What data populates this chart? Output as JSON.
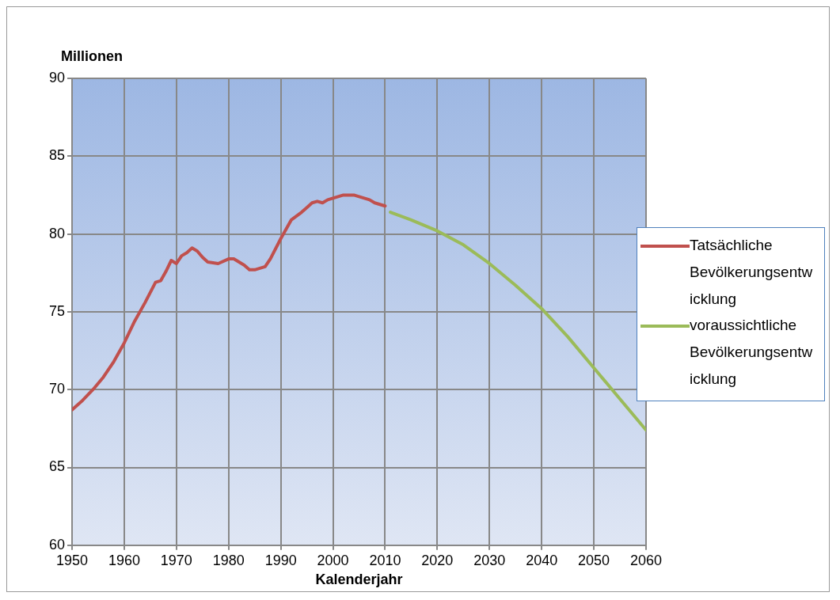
{
  "chart_data": {
    "type": "line",
    "ylabel": "Millionen",
    "xlabel": "Kalenderjahr",
    "xlim": [
      1950,
      2060
    ],
    "xticks": [
      1950,
      1960,
      1970,
      1980,
      1990,
      2000,
      2010,
      2020,
      2030,
      2040,
      2050,
      2060
    ],
    "ylim": [
      60,
      90
    ],
    "yticks": [
      60,
      65,
      70,
      75,
      80,
      85,
      90
    ],
    "grid": true,
    "legend": "right",
    "marker": "none",
    "line_style": "solid",
    "series": [
      {
        "name": "Tatsächliche Bevölkerungsentwicklung",
        "color": "#c0504d",
        "x": [
          1950,
          1952,
          1954,
          1956,
          1958,
          1960,
          1962,
          1964,
          1966,
          1967,
          1968,
          1969,
          1970,
          1971,
          1972,
          1973,
          1974,
          1975,
          1976,
          1978,
          1980,
          1981,
          1983,
          1984,
          1985,
          1987,
          1988,
          1990,
          1991,
          1992,
          1994,
          1995,
          1996,
          1997,
          1998,
          1999,
          2000,
          2002,
          2004,
          2006,
          2007,
          2008,
          2010
        ],
        "values": [
          68.7,
          69.3,
          70.0,
          70.8,
          71.8,
          73.0,
          74.4,
          75.6,
          76.9,
          77.0,
          77.6,
          78.3,
          78.1,
          78.6,
          78.8,
          79.1,
          78.9,
          78.5,
          78.2,
          78.1,
          78.4,
          78.4,
          78.0,
          77.7,
          77.7,
          77.9,
          78.4,
          79.7,
          80.3,
          80.9,
          81.4,
          81.7,
          82.0,
          82.1,
          82.0,
          82.2,
          82.3,
          82.5,
          82.5,
          82.3,
          82.2,
          82.0,
          81.8
        ]
      },
      {
        "name": "voraussichtliche Bevölkerungsentwicklung",
        "color": "#9bbb59",
        "x": [
          2011,
          2015,
          2020,
          2025,
          2030,
          2035,
          2040,
          2045,
          2050,
          2055,
          2060
        ],
        "values": [
          81.4,
          80.9,
          80.2,
          79.3,
          78.1,
          76.7,
          75.2,
          73.4,
          71.4,
          69.4,
          67.4
        ]
      }
    ]
  }
}
